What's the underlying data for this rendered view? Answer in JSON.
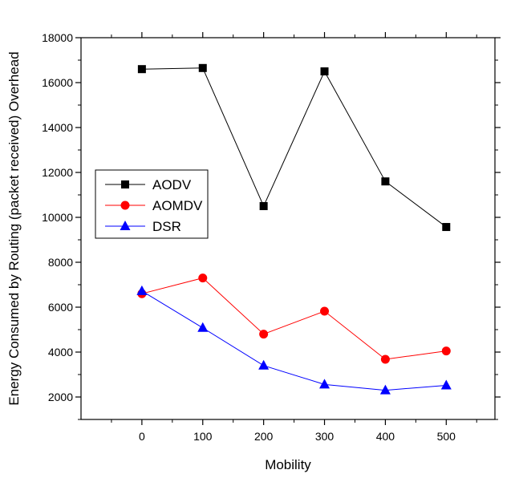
{
  "chart_data": {
    "type": "line",
    "title": "",
    "xlabel": "Mobility",
    "ylabel": "Energy Consumed by Routing (packet received) Overhead",
    "x": [
      0,
      100,
      200,
      300,
      400,
      500
    ],
    "xlim": [
      -100,
      580
    ],
    "ylim": [
      1000,
      18000
    ],
    "xticks": [
      0,
      100,
      200,
      300,
      400,
      500
    ],
    "yticks": [
      2000,
      4000,
      6000,
      8000,
      10000,
      12000,
      14000,
      16000,
      18000
    ],
    "grid": false,
    "legend_position": "center-left",
    "series": [
      {
        "name": "AODV",
        "color": "#000000",
        "marker": "square",
        "values": [
          16600,
          16650,
          10500,
          16500,
          11600,
          9570
        ]
      },
      {
        "name": "AOMDV",
        "color": "#ff0000",
        "marker": "circle",
        "values": [
          6600,
          7300,
          4800,
          5820,
          3680,
          4050
        ]
      },
      {
        "name": "DSR",
        "color": "#0000ff",
        "marker": "triangle",
        "values": [
          6720,
          5080,
          3400,
          2560,
          2300,
          2520
        ]
      }
    ]
  }
}
